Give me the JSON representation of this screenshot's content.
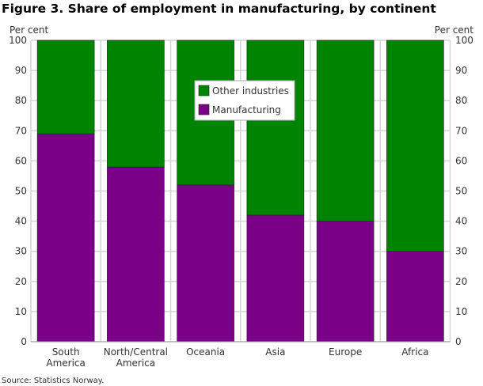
{
  "chart_data": {
    "type": "bar",
    "stacked": true,
    "title": "Figure 3. Share of employment in manufacturing, by continent",
    "ylabel_left": "Per cent",
    "ylabel_right": "Per cent",
    "source": "Source: Statistics Norway.",
    "categories": [
      [
        "South",
        "America"
      ],
      [
        "North/Central",
        "America"
      ],
      [
        "Oceania"
      ],
      [
        "Asia"
      ],
      [
        "Europe"
      ],
      [
        "Africa"
      ]
    ],
    "ylim": [
      0,
      100
    ],
    "yticks": [
      0,
      10,
      20,
      30,
      40,
      50,
      60,
      70,
      80,
      90,
      100
    ],
    "grid": true,
    "legend_placement": "top-center",
    "series": [
      {
        "name": "Manufacturing",
        "color": "#7a0088",
        "values": [
          69,
          58,
          52,
          42,
          40,
          30
        ]
      },
      {
        "name": "Other industries",
        "color": "#008400",
        "values": [
          31,
          42,
          48,
          58,
          60,
          70
        ]
      }
    ],
    "legend_order": [
      1,
      0
    ]
  }
}
